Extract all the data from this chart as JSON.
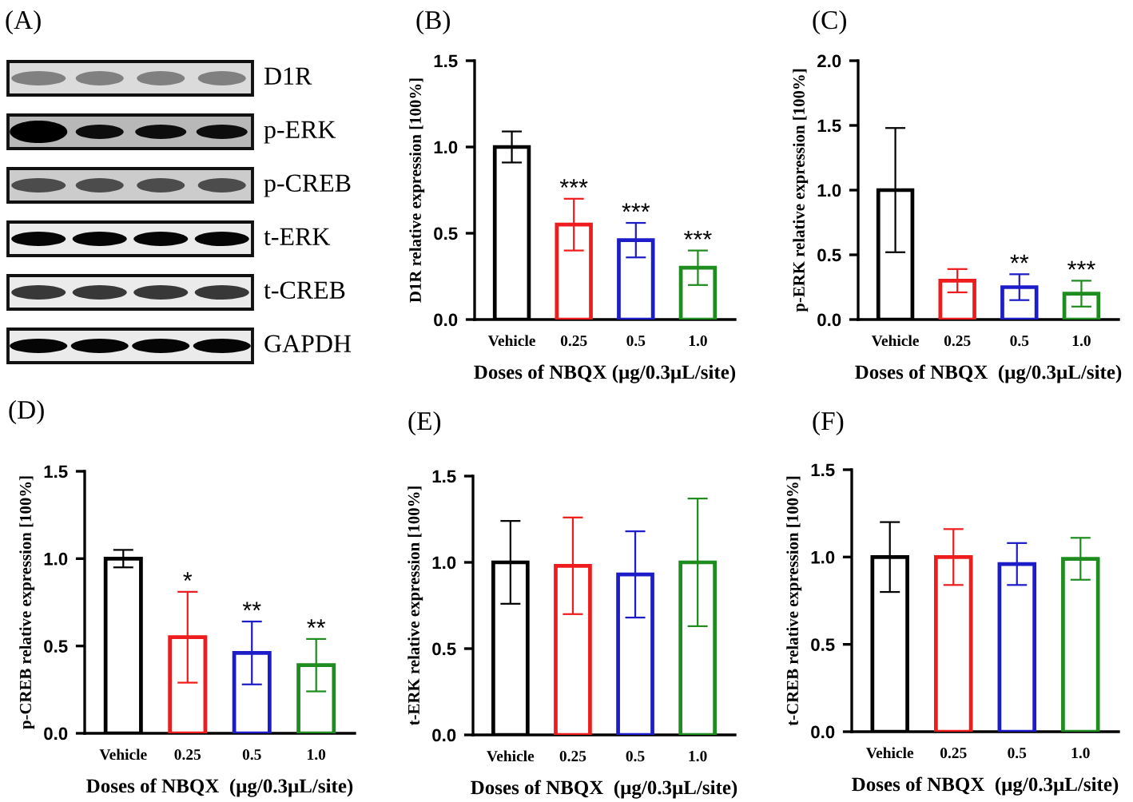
{
  "chart_data": [
    {
      "type": "other",
      "title": "(A)",
      "annotations": [
        "D1R",
        "p-ERK",
        "p-CREB",
        "t-ERK",
        "t-CREB",
        "GAPDH"
      ]
    },
    {
      "type": "bar",
      "title": "(B)",
      "xlabel": "Doses of NBQX (μg/0.3μL/site)",
      "ylabel": "D1R relative expression [100%]",
      "categories": [
        "Vehicle",
        "0.25",
        "0.5",
        "1.0"
      ],
      "values": [
        1.0,
        0.55,
        0.46,
        0.3
      ],
      "errors": [
        0.09,
        0.15,
        0.1,
        0.1
      ],
      "colors": [
        "#000000",
        "#ee1c1c",
        "#1c1cc8",
        "#1e8c1e"
      ],
      "ylim": [
        0,
        1.5
      ],
      "yticks": [
        {
          "value": 0,
          "label": "0.0"
        },
        {
          "value": 0.5,
          "label": "0.5"
        },
        {
          "value": 1,
          "label": "1.0"
        },
        {
          "value": 1.5,
          "label": "1.5"
        }
      ],
      "annotations": [
        {
          "text": "***",
          "x": "0.25",
          "y": 0.7
        },
        {
          "text": "***",
          "x": "0.5",
          "y": 0.56
        },
        {
          "text": "***",
          "x": "1.0",
          "y": 0.4
        }
      ]
    },
    {
      "type": "bar",
      "title": "(C)",
      "xlabel": "Doses of NBQX  (μg/0.3μL/site)",
      "ylabel": "p-ERK relative expression [100%]",
      "categories": [
        "Vehicle",
        "0.25",
        "0.5",
        "1.0"
      ],
      "values": [
        1.0,
        0.3,
        0.25,
        0.2
      ],
      "errors": [
        0.48,
        0.09,
        0.1,
        0.1
      ],
      "colors": [
        "#000000",
        "#ee1c1c",
        "#1c1cc8",
        "#1e8c1e"
      ],
      "ylim": [
        0,
        2
      ],
      "yticks": [
        {
          "value": 0,
          "label": "0.0"
        },
        {
          "value": 0.5,
          "label": "0.5"
        },
        {
          "value": 1,
          "label": "1.0"
        },
        {
          "value": 1.5,
          "label": "1.5"
        },
        {
          "value": 2,
          "label": "2.0"
        }
      ],
      "annotations": [
        {
          "text": "**",
          "x": "0.5",
          "y": 0.35
        },
        {
          "text": "***",
          "x": "1.0",
          "y": 0.3
        }
      ]
    },
    {
      "type": "bar",
      "title": "(D)",
      "xlabel": "Doses of NBQX  (μg/0.3μL/site)",
      "ylabel": "p-CREB relative expression [100%]",
      "categories": [
        "Vehicle",
        "0.25",
        "0.5",
        "1.0"
      ],
      "values": [
        1.0,
        0.55,
        0.46,
        0.39
      ],
      "errors": [
        0.05,
        0.26,
        0.18,
        0.15
      ],
      "colors": [
        "#000000",
        "#ee1c1c",
        "#1c1cc8",
        "#1e8c1e"
      ],
      "ylim": [
        0,
        1.5
      ],
      "yticks": [
        {
          "value": 0,
          "label": "0.0"
        },
        {
          "value": 0.5,
          "label": "0.5"
        },
        {
          "value": 1,
          "label": "1.0"
        },
        {
          "value": 1.5,
          "label": "1.5"
        }
      ],
      "annotations": [
        {
          "text": "*",
          "x": "0.25",
          "y": 0.81
        },
        {
          "text": "**",
          "x": "0.5",
          "y": 0.64
        },
        {
          "text": "**",
          "x": "1.0",
          "y": 0.54
        }
      ]
    },
    {
      "type": "bar",
      "title": "(E)",
      "xlabel": "Doses of NBQX  (μg/0.3μL/site)",
      "ylabel": "t-ERK relative expression [100%]",
      "categories": [
        "Vehicle",
        "0.25",
        "0.5",
        "1.0"
      ],
      "values": [
        1.0,
        0.98,
        0.93,
        1.0
      ],
      "errors": [
        0.24,
        0.28,
        0.25,
        0.37
      ],
      "colors": [
        "#000000",
        "#ee1c1c",
        "#1c1cc8",
        "#1e8c1e"
      ],
      "ylim": [
        0,
        1.5
      ],
      "yticks": [
        {
          "value": 0,
          "label": "0.0"
        },
        {
          "value": 0.5,
          "label": "0.5"
        },
        {
          "value": 1,
          "label": "1.0"
        },
        {
          "value": 1.5,
          "label": "1.5"
        }
      ]
    },
    {
      "type": "bar",
      "title": "(F)",
      "xlabel": "Doses of NBQX  (μg/0.3μL/site)",
      "ylabel": "t-CREB relative expression [100%]",
      "categories": [
        "Vehicle",
        "0.25",
        "0.5",
        "1.0"
      ],
      "values": [
        1.0,
        1.0,
        0.96,
        0.99
      ],
      "errors": [
        0.2,
        0.16,
        0.12,
        0.12
      ],
      "colors": [
        "#000000",
        "#ee1c1c",
        "#1c1cc8",
        "#1e8c1e"
      ],
      "ylim": [
        0,
        1.5
      ],
      "yticks": [
        {
          "value": 0,
          "label": "0.0"
        },
        {
          "value": 0.5,
          "label": "0.5"
        },
        {
          "value": 1,
          "label": "1.0"
        },
        {
          "value": 1.5,
          "label": "1.5"
        }
      ]
    }
  ]
}
